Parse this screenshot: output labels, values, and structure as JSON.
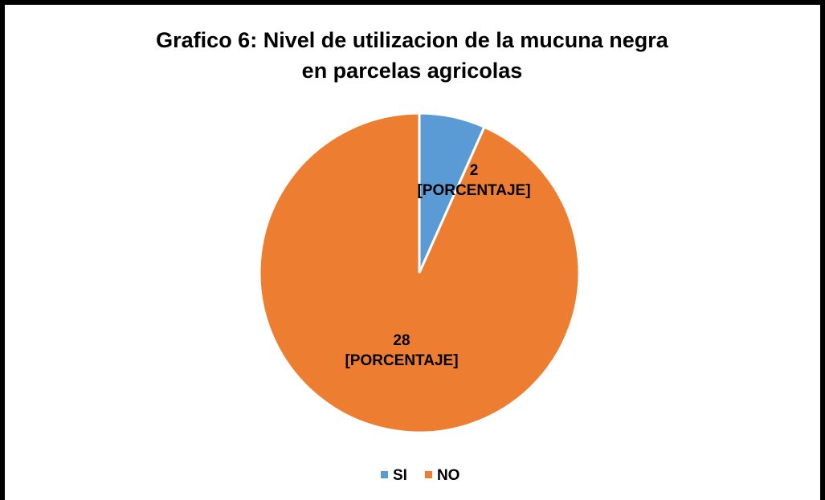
{
  "chart_data": {
    "type": "pie",
    "title": "Grafico 6: Nivel de utilizacion de la mucuna negra en parcelas agricolas",
    "categories": [
      "SI",
      "NO"
    ],
    "values": [
      2,
      28
    ],
    "percent_labels": [
      "[PORCENTAJE]",
      "[PORCENTAJE]"
    ],
    "colors": [
      "#5b9bd5",
      "#ed7d31"
    ],
    "legend": "bottom"
  }
}
